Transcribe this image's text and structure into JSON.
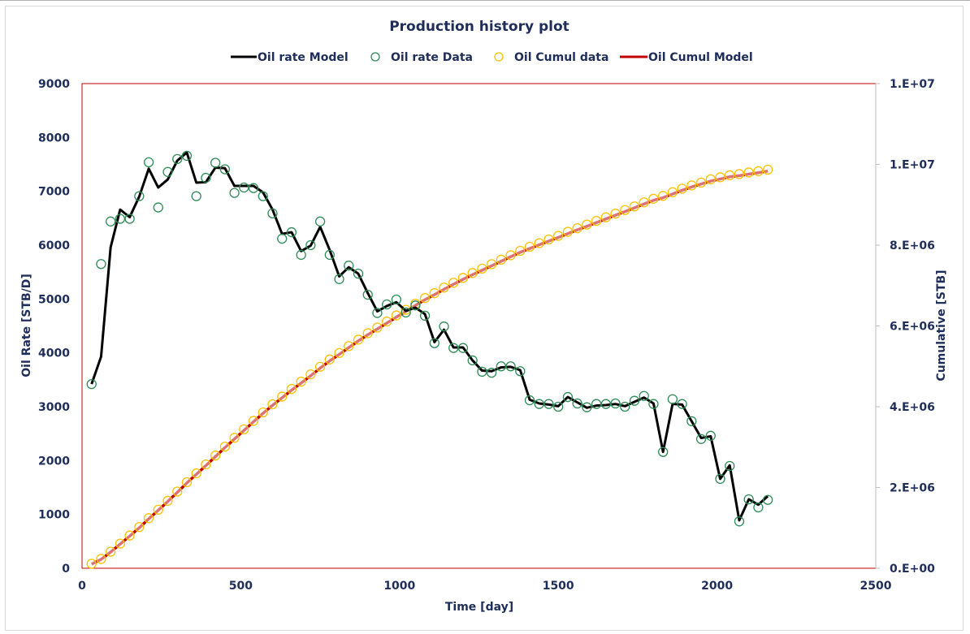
{
  "chart_data": {
    "type": "line",
    "title": "Production history plot",
    "xlabel": "Time [day]",
    "ylabel": "Oil Rate [STB/D]",
    "y2label": "Cumulative [STB]",
    "xlim": [
      0,
      2500
    ],
    "ylim": [
      0,
      9000
    ],
    "y2lim": [
      0,
      12000000
    ],
    "x_ticks": [
      0,
      500,
      1000,
      1500,
      2000,
      2500
    ],
    "x_tick_labels": [
      "0",
      "500",
      "1000",
      "1500",
      "2000",
      "2500"
    ],
    "y_ticks": [
      0,
      1000,
      2000,
      3000,
      4000,
      5000,
      6000,
      7000,
      8000,
      9000
    ],
    "y_tick_labels": [
      "0",
      "1000",
      "2000",
      "3000",
      "4000",
      "5000",
      "6000",
      "7000",
      "8000",
      "9000"
    ],
    "y2_ticks": [
      0,
      2000000,
      4000000,
      6000000,
      8000000,
      10000000,
      12000000
    ],
    "y2_tick_labels": [
      "0.E+00",
      "2.E+06",
      "4.E+06",
      "6.E+06",
      "8.E+06",
      "1.E+07",
      "1.E+07"
    ],
    "grid": false,
    "legend_position": "top-center",
    "legend": [
      {
        "label": "Oil rate Model",
        "kind": "line",
        "color": "#000000"
      },
      {
        "label": "Oil rate Data",
        "kind": "marker",
        "color": "#2e8b57"
      },
      {
        "label": "Oil Cumul data",
        "kind": "marker",
        "color": "#ffc000"
      },
      {
        "label": "Oil Cumul Model",
        "kind": "line",
        "color": "#c00000"
      }
    ],
    "x": [
      30,
      60,
      90,
      120,
      150,
      180,
      210,
      240,
      270,
      300,
      330,
      360,
      390,
      420,
      450,
      480,
      510,
      540,
      570,
      600,
      630,
      660,
      690,
      720,
      750,
      780,
      810,
      840,
      870,
      900,
      930,
      960,
      990,
      1020,
      1050,
      1080,
      1110,
      1140,
      1170,
      1200,
      1230,
      1260,
      1290,
      1320,
      1350,
      1380,
      1410,
      1440,
      1470,
      1500,
      1530,
      1560,
      1590,
      1620,
      1650,
      1680,
      1710,
      1740,
      1770,
      1800,
      1830,
      1860,
      1890,
      1920,
      1950,
      1980,
      2010,
      2040,
      2070,
      2100,
      2130,
      2160
    ],
    "series": [
      {
        "name": "Oil rate Model",
        "axis": "left",
        "color": "#000000",
        "values": [
          3420,
          3930,
          5960,
          6660,
          6520,
          6900,
          7420,
          7070,
          7220,
          7570,
          7720,
          7160,
          7170,
          7440,
          7430,
          7100,
          7100,
          7100,
          6980,
          6660,
          6210,
          6240,
          5890,
          5990,
          6340,
          5910,
          5420,
          5590,
          5470,
          5110,
          4770,
          4870,
          4940,
          4780,
          4840,
          4720,
          4200,
          4430,
          4100,
          4100,
          3860,
          3670,
          3660,
          3730,
          3740,
          3680,
          3130,
          3060,
          3040,
          3010,
          3180,
          3080,
          2980,
          3020,
          3030,
          3050,
          3010,
          3090,
          3170,
          3060,
          2160,
          3050,
          3040,
          2730,
          2420,
          2450,
          1660,
          1910,
          890,
          1280,
          1180,
          1340
        ]
      },
      {
        "name": "Oil rate Data",
        "axis": "left",
        "color": "#2e8b57",
        "values": [
          3420,
          5650,
          6440,
          6490,
          6490,
          6910,
          7540,
          6700,
          7360,
          7600,
          7660,
          6910,
          7250,
          7530,
          7410,
          6970,
          7070,
          7060,
          6910,
          6590,
          6120,
          6240,
          5820,
          6000,
          6440,
          5820,
          5370,
          5620,
          5470,
          5080,
          4740,
          4900,
          4990,
          4750,
          4880,
          4690,
          4180,
          4490,
          4090,
          4090,
          3860,
          3650,
          3630,
          3750,
          3750,
          3660,
          3120,
          3050,
          3050,
          3000,
          3180,
          3060,
          2990,
          3050,
          3050,
          3060,
          3000,
          3110,
          3200,
          3050,
          2160,
          3140,
          3050,
          2730,
          2400,
          2460,
          1660,
          1900,
          870,
          1280,
          1130,
          1270
        ]
      },
      {
        "name": "Oil Cumul data",
        "axis": "right",
        "color": "#ffc000",
        "values": [
          110000,
          230000,
          410000,
          610000,
          810000,
          1020000,
          1240000,
          1450000,
          1670000,
          1900000,
          2130000,
          2350000,
          2570000,
          2790000,
          3010000,
          3230000,
          3440000,
          3650000,
          3860000,
          4060000,
          4250000,
          4440000,
          4620000,
          4800000,
          4990000,
          5170000,
          5330000,
          5500000,
          5660000,
          5820000,
          5960000,
          6110000,
          6260000,
          6400000,
          6550000,
          6690000,
          6810000,
          6950000,
          7070000,
          7190000,
          7310000,
          7420000,
          7530000,
          7640000,
          7750000,
          7860000,
          7960000,
          8050000,
          8140000,
          8230000,
          8330000,
          8420000,
          8510000,
          8600000,
          8690000,
          8780000,
          8870000,
          8960000,
          9060000,
          9150000,
          9220000,
          9310000,
          9400000,
          9480000,
          9550000,
          9630000,
          9680000,
          9730000,
          9760000,
          9800000,
          9830000,
          9870000
        ]
      },
      {
        "name": "Oil Cumul Model",
        "axis": "right",
        "color": "#c00000",
        "values": [
          102600,
          220500,
          399300,
          599100,
          794700,
          1001700,
          1224300,
          1436400,
          1653000,
          1880100,
          2111700,
          2326500,
          2541600,
          2764800,
          2987700,
          3200700,
          3413700,
          3626700,
          3836100,
          4035900,
          4222200,
          4409400,
          4586100,
          4765800,
          4956000,
          5133300,
          5295900,
          5463600,
          5627700,
          5781000,
          5924100,
          6070200,
          6218400,
          6361800,
          6507000,
          6648600,
          6774600,
          6907500,
          7030500,
          7153500,
          7269300,
          7379400,
          7489200,
          7601100,
          7713300,
          7823700,
          7917600,
          8009400,
          8100600,
          8190900,
          8286300,
          8378700,
          8468100,
          8558700,
          8649600,
          8741100,
          8831400,
          8924100,
          9019200,
          9111000,
          9175800,
          9267300,
          9358500,
          9440400,
          9513000,
          9586500,
          9636300,
          9693600,
          9720300,
          9758700,
          9794100,
          9834300
        ]
      }
    ]
  }
}
